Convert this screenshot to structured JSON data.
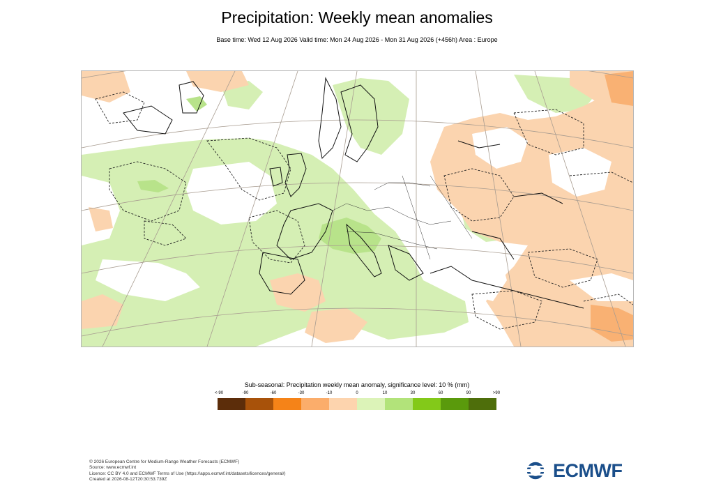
{
  "title": "Precipitation: Weekly mean anomalies",
  "subtitle": "Base time: Wed 12 Aug 2026 Valid time: Mon 24 Aug 2026 - Mon 31 Aug 2026 (+456h) Area : Europe",
  "legend": {
    "title": "Sub-seasonal: Precipitation weekly mean anomaly, significance level: 10 % (mm)",
    "labels": [
      "<-90",
      "-90",
      "-60",
      "-30",
      "-10",
      "0",
      "10",
      "30",
      "60",
      "90",
      ">90"
    ],
    "colors": [
      "#5c2d0a",
      "#a8520a",
      "#f58318",
      "#fbad6b",
      "#fdd4ae",
      "#dcf3b8",
      "#b2e37a",
      "#83c919",
      "#5a9a0c",
      "#4e6e0b"
    ]
  },
  "map": {
    "area": "Europe",
    "colors": {
      "light_green": "#d5efb4",
      "mid_green": "#b8e38a",
      "light_orange": "#fbd4af",
      "mid_orange": "#f9b173",
      "coast": "#111111",
      "grid": "#a89c90"
    }
  },
  "footer": [
    "© 2026 European Centre for Medium-Range Weather Forecasts (ECMWF)",
    "Source: www.ecmwf.int",
    "Licence: CC BY 4.0 and ECMWF Terms of Use (https://apps.ecmwf.int/datasets/licences/general/)",
    "Created at 2026-08-12T20:30:53.739Z"
  ],
  "logo": {
    "text": "ECMWF",
    "color": "#1a4e8a"
  }
}
